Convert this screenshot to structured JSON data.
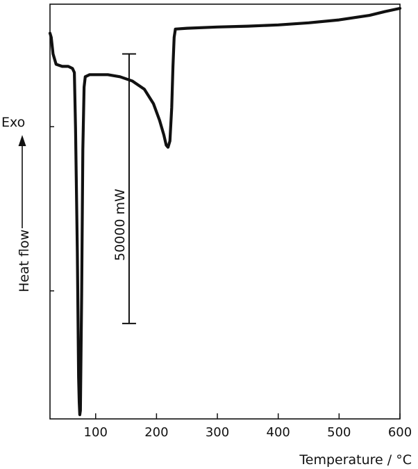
{
  "chart_data": {
    "type": "line",
    "title": "",
    "xlabel": "Temperature / °C",
    "ylabel": "Heat flow",
    "exo_label": "Exo",
    "xlim": [
      25,
      600
    ],
    "x_ticks": [
      100,
      200,
      300,
      400,
      500,
      600
    ],
    "grid": false,
    "legend": "none",
    "y_units": "relative heat flow (exo up)",
    "scale_bar": {
      "label": "50000 mW",
      "x": 155,
      "y_top": 88,
      "y_bottom": 23
    },
    "series": [
      {
        "points": [
          [
            25,
            93
          ],
          [
            27,
            92
          ],
          [
            30,
            88
          ],
          [
            35,
            85.5
          ],
          [
            45,
            85
          ],
          [
            55,
            85
          ],
          [
            62,
            84.5
          ],
          [
            65,
            83.5
          ],
          [
            67,
            70
          ],
          [
            70,
            40
          ],
          [
            72,
            10
          ],
          [
            73,
            4
          ],
          [
            74,
            1
          ],
          [
            75,
            2
          ],
          [
            77,
            30
          ],
          [
            79,
            65
          ],
          [
            81,
            80
          ],
          [
            83,
            82.5
          ],
          [
            90,
            83
          ],
          [
            120,
            83
          ],
          [
            140,
            82.5
          ],
          [
            160,
            81.5
          ],
          [
            180,
            79.5
          ],
          [
            195,
            76
          ],
          [
            205,
            72
          ],
          [
            212,
            68.5
          ],
          [
            216,
            66
          ],
          [
            219,
            65.5
          ],
          [
            222,
            67
          ],
          [
            225,
            75
          ],
          [
            227,
            85
          ],
          [
            229,
            92
          ],
          [
            231,
            94
          ],
          [
            250,
            94.2
          ],
          [
            300,
            94.5
          ],
          [
            350,
            94.7
          ],
          [
            400,
            95
          ],
          [
            450,
            95.5
          ],
          [
            500,
            96.2
          ],
          [
            550,
            97.3
          ],
          [
            575,
            98.2
          ],
          [
            600,
            99
          ]
        ]
      }
    ]
  }
}
